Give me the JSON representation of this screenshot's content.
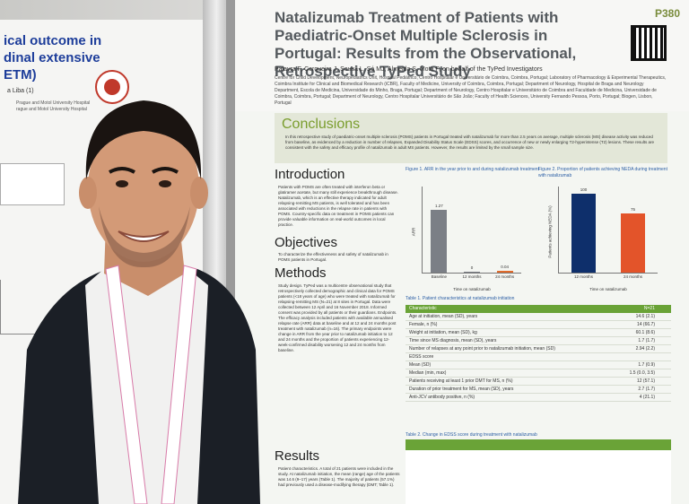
{
  "left_poster": {
    "title": "ical outcome in\ndinal extensive\nETM)",
    "subtitle": "a Liba (1)",
    "affiliation": "Prague and Motol University Hospital\nrague and Motol University Hospital"
  },
  "poster": {
    "code": "P380",
    "title": "Natalizumab Treatment of Patients with Paediatric-Onset Multiple Sclerosis in Portugal: Results from the Observational, Retrospective TyPed Study",
    "authors": "Palavra F, Cerqueira J, Sousa L, Sá MJ, Almeida S, Mota P, on behalf of the TyPed Investigators",
    "affiliations": "Centre for Child Development, Neuropediatrics Unit, Hospital Pediátrico, Centro Hospitalar e Universitário de Coimbra, Coimbra, Portugal; Laboratory of Pharmacology & Experimental Therapeutics, Coimbra Institute for Clinical and Biomedical Research (iCBR), Faculty of Medicine, University of Coimbra, Coimbra, Portugal; Department of Neurology, Hospital de Braga and Neurology Department, Escola de Medicina, Universidade do Minho, Braga, Portugal; Department of Neurology, Centro Hospitalar e Universitário de Coimbra and Faculdade de Medicina, Universidade de Coimbra, Coimbra, Portugal; Department of Neurology, Centro Hospitalar Universitário de São João; Faculty of Health Sciences, University Fernando Pessoa, Porto, Portugal; Biogen, Lisbon, Portugal",
    "conclusions_heading": "Conclusions",
    "conclusions_text": "In this retrospective study of paediatric-onset multiple sclerosis (POMS) patients in Portugal treated with natalizumab for more than 2.5 years on average, multiple sclerosis (MS) disease activity was reduced from baseline, as evidenced by a reduction in number of relapses, Expanded Disability Status Scale (EDSS) scores, and occurrence of new or newly enlarging T2-hyperintense (T2) lesions. These results are consistent with the safety and efficacy profile of natalizumab in adult MS patients. However, the results are limited by the small sample size.",
    "intro_heading": "Introduction",
    "intro_text": "Patients with POMS are often treated with interferon beta or glatiramer acetate, but many still experience breakthrough disease. Natalizumab, which is an effective therapy indicated for adult relapsing-remitting MS patients, is well tolerated and has been associated with reductions in the relapse rate in patients with POMS. Country-specific data on treatment in POMS patients can provide valuable information on real-world outcomes in local practice.",
    "objectives_heading": "Objectives",
    "objectives_text": "To characterize the effectiveness and safety of natalizumab in POMS patients in Portugal.",
    "methods_heading": "Methods",
    "methods_text": "Study design. TyPed was a multicentre observational study that retrospectively collected demographic and clinical data for POMS patients (<18 years of age) who were treated with natalizumab for relapsing-remitting MS (N=21) at 8 sites in Portugal. Data were collected between 12 April and 16 November 2018. Informed consent was provided by all patients or their guardians. Endpoints. The efficacy analysis included patients with available annualised relapse rate (ARR) data at baseline and at 12 and 24 months post treatment with natalizumab (n=16). The primary endpoints were change in ARR from the year prior to natalizumab initiation to 12 and 24 months and the proportion of patients experiencing 12-week-confirmed disability worsening 12 and 24 months from baseline.",
    "results_heading": "Results",
    "results_text": "Patient characteristics. A total of 21 patients were included in the study. At natalizumab initiation, the mean (range) age of the patients was 14.6 (9–17) years (Table 1). The majority of patients (57.1%) had previously used a disease-modifying therapy (DMT; Table 1).",
    "fig1_title": "Figure 1. ARR in the year prior to and during natalizumab treatment",
    "fig1_xlabel": "Time on natalizumab",
    "fig2_title": "Figure 2. Proportion of patients achieving NEDA during treatment with natalizumab",
    "fig2_xlabel": "Time on natalizumab",
    "fig2_ylabel": "Patients achieving NEDA (%)",
    "table1_title": "Table 1. Patient characteristics at natalizumab initiation",
    "table1_header": [
      "Characteristic",
      "N=21"
    ],
    "table1_rows": [
      [
        "Age at initiation, mean (SD), years",
        "14.6 (2.1)"
      ],
      [
        "Female, n (%)",
        "14 (66.7)"
      ],
      [
        "Weight at initiation, mean (SD), kg",
        "60.1 (8.6)"
      ],
      [
        "Time since MS diagnosis, mean (SD), years",
        "1.7 (1.7)"
      ],
      [
        "Number of relapses at any point prior to natalizumab initiation, mean (SD)",
        "2.94 (2.2)"
      ],
      [
        "EDSS score",
        ""
      ],
      [
        "Mean (SD)",
        "1.7 (0.9)"
      ],
      [
        "Median (min, max)",
        "1.5 (0.0, 3.5)"
      ],
      [
        "Patients receiving at least 1 prior DMT for MS, n (%)",
        "12 (57.1)"
      ],
      [
        "Duration of prior treatment for MS, mean (SD), years",
        "2.7 (1.7)"
      ],
      [
        "Anti-JCV antibody positive, n (%)",
        "4 (21.1)"
      ]
    ],
    "table2_title": "Table 2. Change in EDSS score during treatment with natalizumab"
  },
  "chart_data": [
    {
      "type": "bar",
      "categories": [
        "Baseline",
        "12 months",
        "24 months"
      ],
      "values": [
        1.27,
        0,
        0.04
      ],
      "ylim": [
        0,
        1.6
      ],
      "ylabel": "ARR",
      "colors": [
        "#7b7f86",
        "#7b7f86",
        "#e06a2a"
      ]
    },
    {
      "type": "bar",
      "categories": [
        "12 months",
        "24 months"
      ],
      "values": [
        100,
        75
      ],
      "ylim": [
        0,
        100
      ],
      "ylabel": "Patients achieving NEDA (%)",
      "colors": [
        "#0e2f6b",
        "#e3542a"
      ]
    }
  ]
}
